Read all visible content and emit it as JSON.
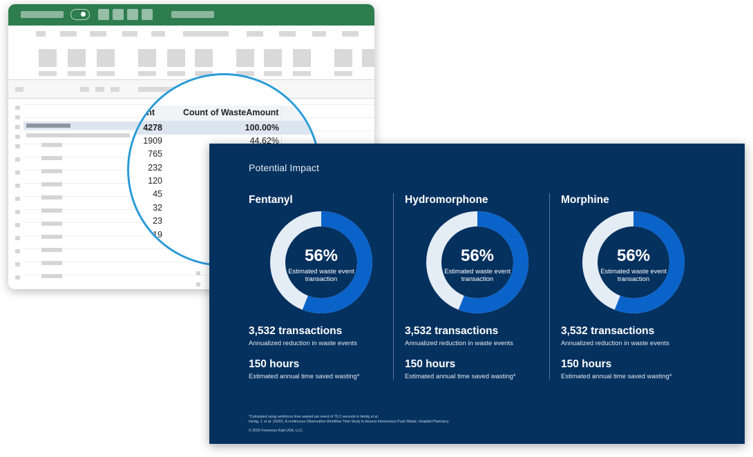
{
  "spreadsheet": {
    "header_left": "ount",
    "header_right": "Count of WasteAmount",
    "total": {
      "count": "4278",
      "percent": "100.00%"
    },
    "rows": [
      {
        "count": "1909",
        "percent": "44.62%"
      },
      {
        "count": "765",
        "percent": ""
      },
      {
        "count": "232",
        "percent": ""
      },
      {
        "count": "120",
        "percent": ""
      },
      {
        "count": "45",
        "percent": ""
      },
      {
        "count": "32",
        "percent": ""
      },
      {
        "count": "23",
        "percent": ""
      },
      {
        "count": "19",
        "percent": ""
      }
    ],
    "colors": {
      "titlebar": "#2e7d4f",
      "magnifier_ring": "#2a9bd8"
    }
  },
  "slide": {
    "title": "Potential Impact",
    "colors": {
      "background": "#05315f",
      "donut_fill": "#0a63c9",
      "donut_track": "#e4ecf6"
    },
    "columns": [
      {
        "name": "Fentanyl",
        "percent_label": "56%",
        "percent_value": 56,
        "donut_caption": "Estimated waste event transaction",
        "transactions": "3,532 transactions",
        "transactions_desc": "Annualized reduction in waste events",
        "hours": "150 hours",
        "hours_desc": "Estimated annual time saved wasting*"
      },
      {
        "name": "Hydromorphone",
        "percent_label": "56%",
        "percent_value": 56,
        "donut_caption": "Estimated waste event transaction",
        "transactions": "3,532 transactions",
        "transactions_desc": "Annualized reduction in waste events",
        "hours": "150 hours",
        "hours_desc": "Estimated annual time saved wasting*"
      },
      {
        "name": "Morphine",
        "percent_label": "56%",
        "percent_value": 56,
        "donut_caption": "Estimated waste event transaction",
        "transactions": "3,532 transactions",
        "transactions_desc": "Annualized reduction in waste events",
        "hours": "150 hours",
        "hours_desc": "Estimated annual time saved wasting*"
      }
    ],
    "footnotes": {
      "line1": "*Calculated using workforce time wasted per event of 76.2 seconds in Hertig et al.",
      "line2": "Hertig, J. et al. (2020). A continuous Observation Workflow Time Study to Assess Intravenous Push Waste. Hospital Pharmacy.",
      "copyright": "© 2025 Fresenius Kabi USA, LLC."
    }
  }
}
